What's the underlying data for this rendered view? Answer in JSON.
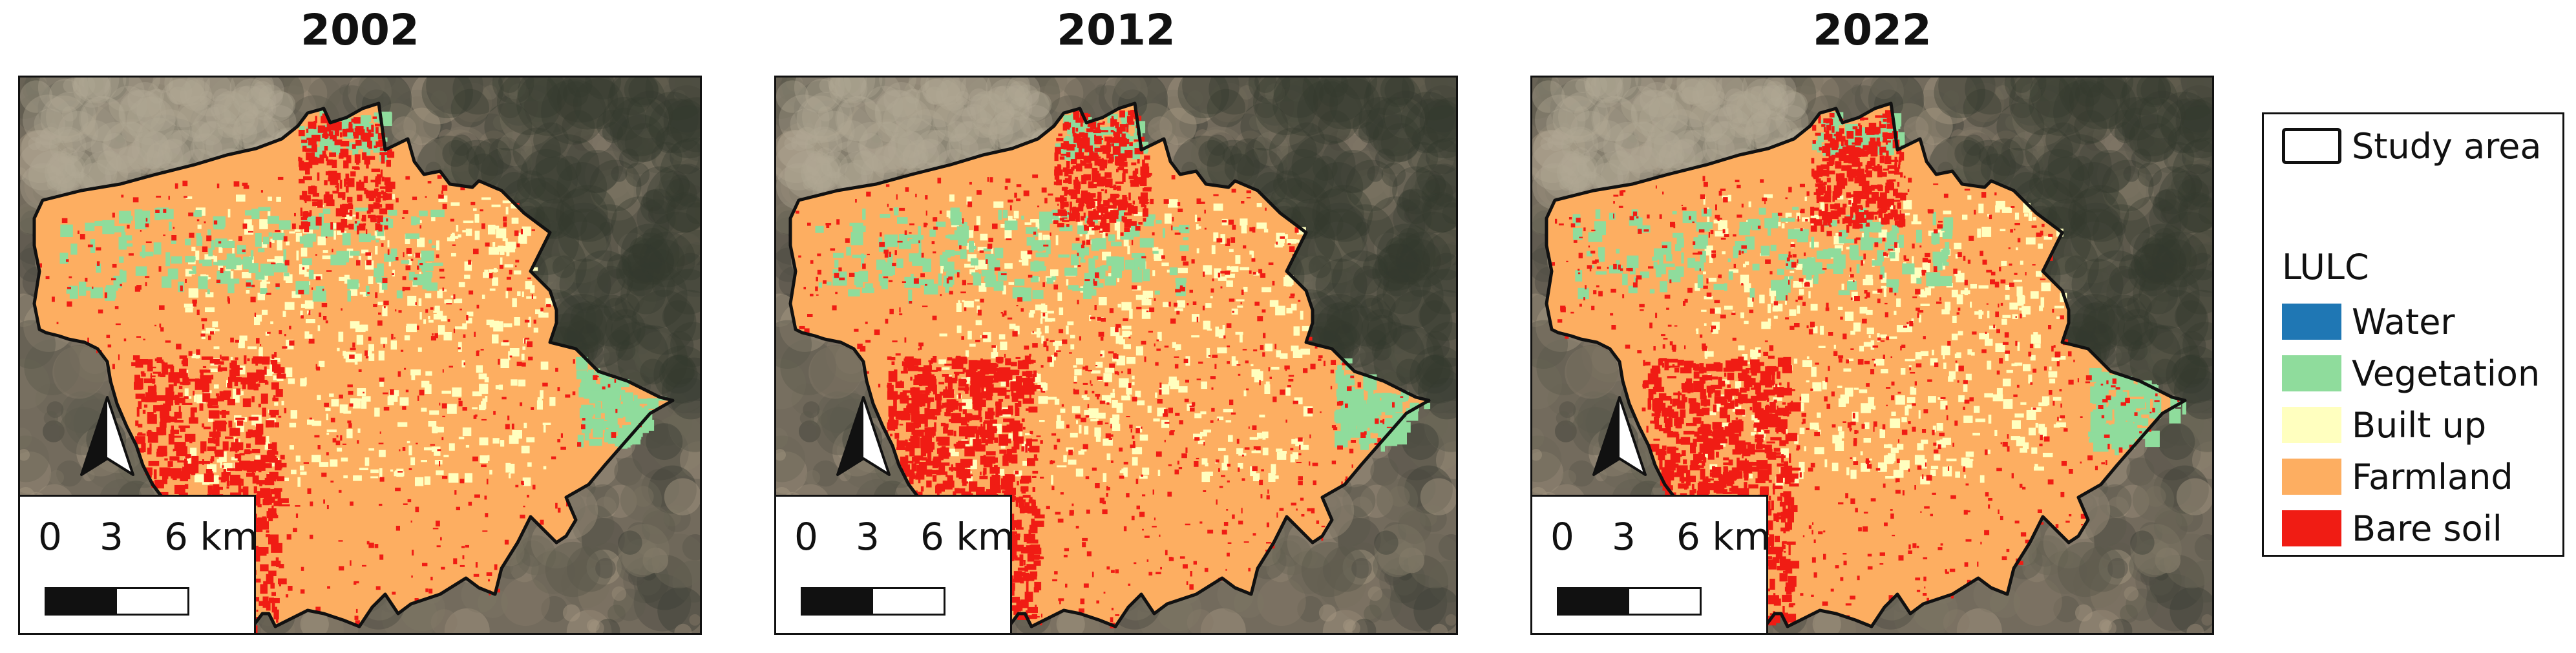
{
  "panels": [
    {
      "year": "2002"
    },
    {
      "year": "2012"
    },
    {
      "year": "2022"
    }
  ],
  "scale_bar": {
    "tick_0": "0",
    "tick_3": "3",
    "tick_6": "6 km"
  },
  "north_arrow": {
    "icon": "north-arrow-icon"
  },
  "legend": {
    "study_area": "Study area",
    "heading": "LULC",
    "classes": [
      {
        "label": "Water",
        "color": "#1f77b4"
      },
      {
        "label": "Vegetation",
        "color": "#8fdc9c"
      },
      {
        "label": "Built up",
        "color": "#ffffbf"
      },
      {
        "label": "Farmland",
        "color": "#fdae61"
      },
      {
        "label": "Bare soil",
        "color": "#f01c14"
      }
    ]
  },
  "lulc_share_by_year": {
    "2002": {
      "farmland": 0.68,
      "built_up": 0.11,
      "vegetation": 0.06,
      "bare_soil": 0.15
    },
    "2012": {
      "farmland": 0.62,
      "built_up": 0.1,
      "vegetation": 0.07,
      "bare_soil": 0.21
    },
    "2022": {
      "farmland": 0.63,
      "built_up": 0.11,
      "vegetation": 0.06,
      "bare_soil": 0.2
    }
  }
}
